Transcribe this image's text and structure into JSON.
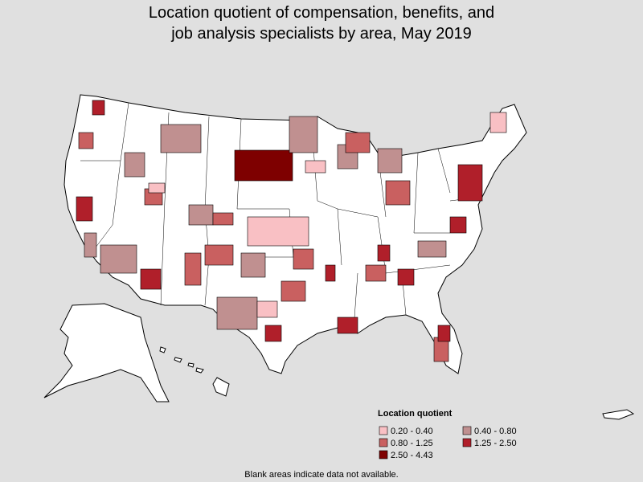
{
  "title": [
    "Location quotient of compensation, benefits, and",
    "job analysis specialists by area, May 2019"
  ],
  "legend": {
    "title": "Location quotient",
    "items": [
      {
        "label": "0.20 - 0.40",
        "color": "#f9c0c4"
      },
      {
        "label": "0.40 - 0.80",
        "color": "#c09090"
      },
      {
        "label": "0.80 - 1.25",
        "color": "#c96060"
      },
      {
        "label": "1.25 - 2.50",
        "color": "#b01f2a"
      },
      {
        "label": "2.50 - 4.43",
        "color": "#7e0000"
      }
    ]
  },
  "footnote": "Blank areas indicate data not available."
}
